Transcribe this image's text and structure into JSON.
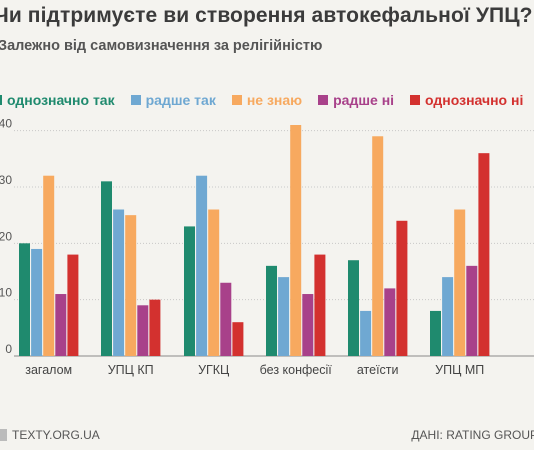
{
  "header": {
    "title": "Чи підтримуєте ви створення автокефальної УПЦ?",
    "subtitle": "Залежно від самовизначення за релігійністю"
  },
  "footer": {
    "source_left": "TEXTY.ORG.UA",
    "source_right": "ДАНІ: RATING GROUP"
  },
  "chart_data": {
    "type": "bar",
    "title": "Чи підтримуєте ви створення автокефальної УПЦ?",
    "subtitle": "Залежно від самовизначення за релігійністю",
    "categories": [
      "загалом",
      "УПЦ КП",
      "УГКЦ",
      "без конфесії",
      "атеїсти",
      "УПЦ МП"
    ],
    "series": [
      {
        "name": "однозначно так",
        "color": "#1f8a6e",
        "values": [
          20,
          31,
          23,
          16,
          17,
          8
        ]
      },
      {
        "name": "радше так",
        "color": "#6fa8d2",
        "values": [
          19,
          26,
          32,
          14,
          8,
          14
        ]
      },
      {
        "name": "не знаю",
        "color": "#f7a95f",
        "values": [
          32,
          25,
          26,
          41,
          39,
          26
        ]
      },
      {
        "name": "радше ні",
        "color": "#a8418a",
        "values": [
          11,
          9,
          13,
          11,
          12,
          16
        ]
      },
      {
        "name": "однозначно ні",
        "color": "#d3312f",
        "values": [
          18,
          10,
          6,
          18,
          24,
          36
        ]
      }
    ],
    "yticks": [
      0,
      10,
      20,
      30,
      40
    ],
    "ylim": [
      0,
      41
    ],
    "grid": true,
    "legend_position": "top-left"
  }
}
